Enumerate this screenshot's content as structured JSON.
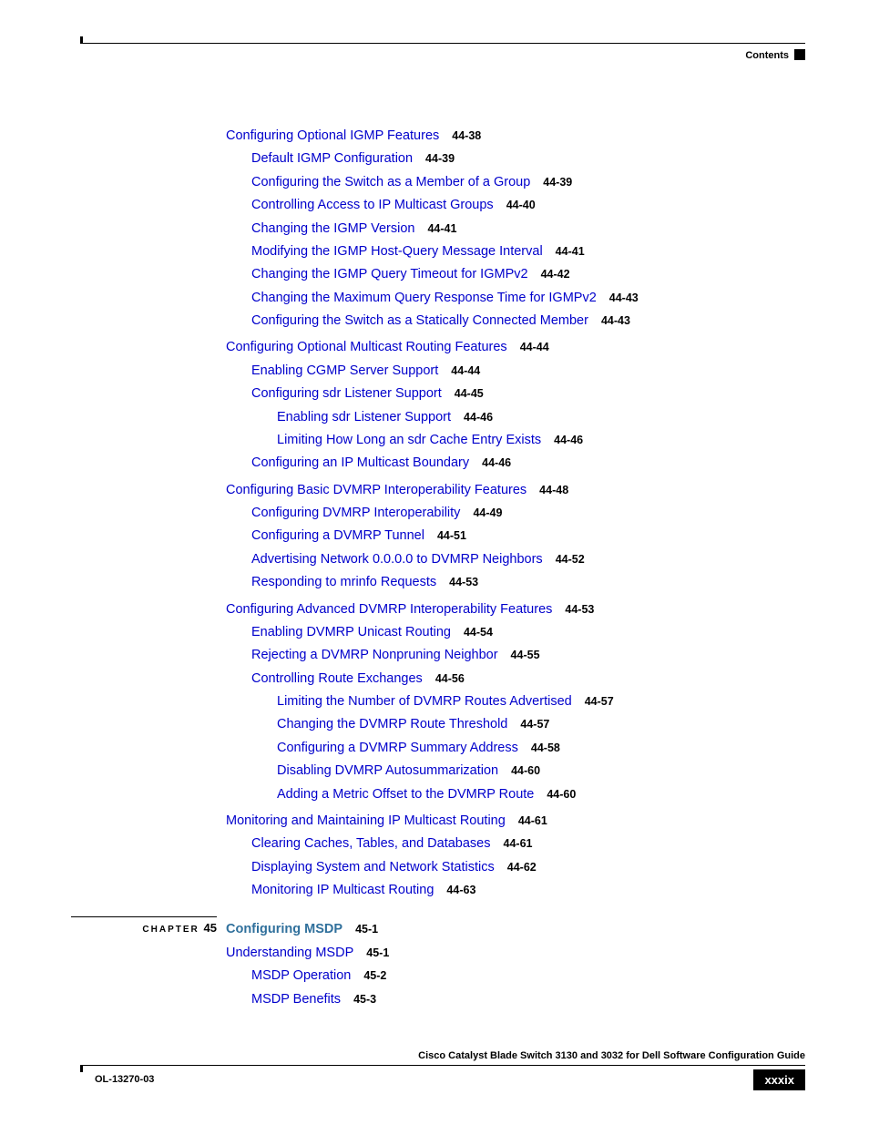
{
  "header": {
    "contents": "Contents"
  },
  "chapter": {
    "label": "CHAPTER",
    "num": "45"
  },
  "section45": {
    "title": "Configuring MSDP",
    "page": "45-1"
  },
  "items": [
    {
      "lvl": 1,
      "t": "Configuring Optional IGMP Features",
      "p": "44-38"
    },
    {
      "lvl": 2,
      "t": "Default IGMP Configuration",
      "p": "44-39"
    },
    {
      "lvl": 2,
      "t": "Configuring the Switch as a Member of a Group",
      "p": "44-39"
    },
    {
      "lvl": 2,
      "t": "Controlling Access to IP Multicast Groups",
      "p": "44-40"
    },
    {
      "lvl": 2,
      "t": "Changing the IGMP Version",
      "p": "44-41"
    },
    {
      "lvl": 2,
      "t": "Modifying the IGMP Host-Query Message Interval",
      "p": "44-41"
    },
    {
      "lvl": 2,
      "t": "Changing the IGMP Query Timeout for IGMPv2",
      "p": "44-42"
    },
    {
      "lvl": 2,
      "t": "Changing the Maximum Query Response Time for IGMPv2",
      "p": "44-43"
    },
    {
      "lvl": 2,
      "t": "Configuring the Switch as a Statically Connected Member",
      "p": "44-43"
    },
    {
      "lvl": 1,
      "t": "Configuring Optional Multicast Routing Features",
      "p": "44-44"
    },
    {
      "lvl": 2,
      "t": "Enabling CGMP Server Support",
      "p": "44-44"
    },
    {
      "lvl": 2,
      "t": "Configuring sdr Listener Support",
      "p": "44-45"
    },
    {
      "lvl": 3,
      "t": "Enabling sdr Listener Support",
      "p": "44-46"
    },
    {
      "lvl": 3,
      "t": "Limiting How Long an sdr Cache Entry Exists",
      "p": "44-46"
    },
    {
      "lvl": 2,
      "t": "Configuring an IP Multicast Boundary",
      "p": "44-46"
    },
    {
      "lvl": 1,
      "t": "Configuring Basic DVMRP Interoperability Features",
      "p": "44-48"
    },
    {
      "lvl": 2,
      "t": "Configuring DVMRP Interoperability",
      "p": "44-49"
    },
    {
      "lvl": 2,
      "t": "Configuring a DVMRP Tunnel",
      "p": "44-51"
    },
    {
      "lvl": 2,
      "t": "Advertising Network 0.0.0.0 to DVMRP Neighbors",
      "p": "44-52"
    },
    {
      "lvl": 2,
      "t": "Responding to mrinfo Requests",
      "p": "44-53"
    },
    {
      "lvl": 1,
      "t": "Configuring Advanced DVMRP Interoperability Features",
      "p": "44-53"
    },
    {
      "lvl": 2,
      "t": "Enabling DVMRP Unicast Routing",
      "p": "44-54"
    },
    {
      "lvl": 2,
      "t": "Rejecting a DVMRP Nonpruning Neighbor",
      "p": "44-55"
    },
    {
      "lvl": 2,
      "t": "Controlling Route Exchanges",
      "p": "44-56"
    },
    {
      "lvl": 3,
      "t": "Limiting the Number of DVMRP Routes Advertised",
      "p": "44-57"
    },
    {
      "lvl": 3,
      "t": "Changing the DVMRP Route Threshold",
      "p": "44-57"
    },
    {
      "lvl": 3,
      "t": "Configuring a DVMRP Summary Address",
      "p": "44-58"
    },
    {
      "lvl": 3,
      "t": "Disabling DVMRP Autosummarization",
      "p": "44-60"
    },
    {
      "lvl": 3,
      "t": "Adding a Metric Offset to the DVMRP Route",
      "p": "44-60"
    },
    {
      "lvl": 1,
      "t": "Monitoring and Maintaining IP Multicast Routing",
      "p": "44-61"
    },
    {
      "lvl": 2,
      "t": "Clearing Caches, Tables, and Databases",
      "p": "44-61"
    },
    {
      "lvl": 2,
      "t": "Displaying System and Network Statistics",
      "p": "44-62"
    },
    {
      "lvl": 2,
      "t": "Monitoring IP Multicast Routing",
      "p": "44-63"
    }
  ],
  "items45": [
    {
      "lvl": 1,
      "t": "Understanding MSDP",
      "p": "45-1"
    },
    {
      "lvl": 2,
      "t": "MSDP Operation",
      "p": "45-2"
    },
    {
      "lvl": 2,
      "t": "MSDP Benefits",
      "p": "45-3"
    }
  ],
  "footer": {
    "title": "Cisco Catalyst Blade Switch 3130 and 3032 for Dell Software Configuration Guide",
    "docid": "OL-13270-03",
    "pagenum": "xxxix"
  }
}
